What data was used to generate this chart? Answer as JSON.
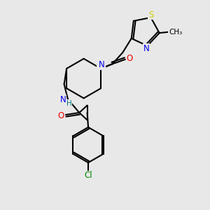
{
  "bg_color": "#e8e8e8",
  "atom_colors": {
    "N": "#0000ee",
    "O": "#ee0000",
    "S": "#cccc00",
    "Cl": "#008800",
    "H": "#007777"
  },
  "bond_color": "#000000",
  "bond_lw": 1.5
}
